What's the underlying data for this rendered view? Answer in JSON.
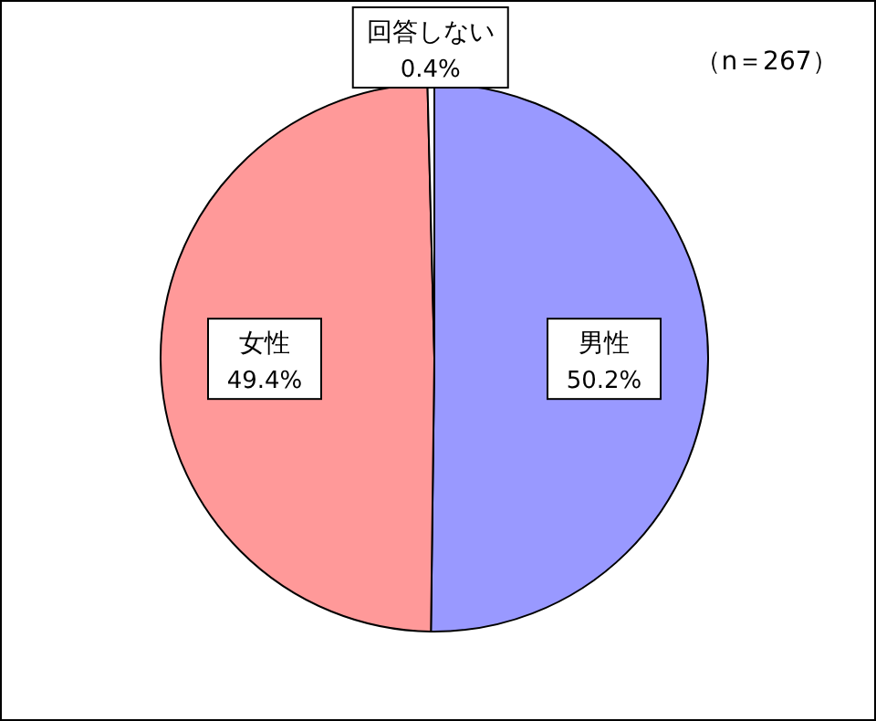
{
  "chart_data": {
    "type": "pie",
    "categories": [
      "男性",
      "女性",
      "回答しない"
    ],
    "values": [
      50.2,
      49.4,
      0.4
    ],
    "value_labels": [
      "50.2%",
      "49.4%",
      "0.4%"
    ],
    "colors": [
      "#9999ff",
      "#ff9999",
      "#ffffff"
    ],
    "annotations": [
      "（n＝267）"
    ]
  }
}
